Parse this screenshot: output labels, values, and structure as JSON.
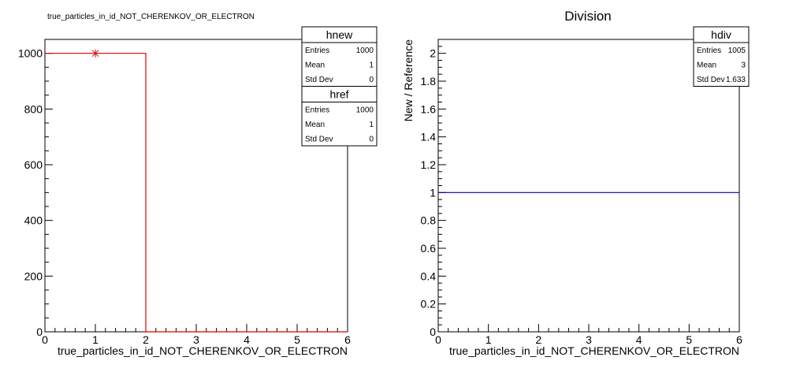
{
  "colors": {
    "new_hist": "#e00000",
    "div_hist": "#000099",
    "frame": "#000000"
  },
  "chart_data": [
    {
      "type": "bar",
      "title": "true_particles_in_id_NOT_CHERENKOV_OR_ELECTRON",
      "xlabel": "true_particles_in_id_NOT_CHERENKOV_OR_ELECTRON",
      "ylabel": "",
      "xlim": [
        0,
        6
      ],
      "ylim": [
        0,
        1050
      ],
      "x_ticks": [
        "0",
        "1",
        "2",
        "3",
        "4",
        "5",
        "6"
      ],
      "y_ticks": [
        "0",
        "200",
        "400",
        "600",
        "800",
        "1000"
      ],
      "series": [
        {
          "name": "hnew",
          "bins": [
            [
              0,
              2,
              1000
            ],
            [
              2,
              6,
              0
            ]
          ],
          "marker": {
            "x": 1,
            "y": 1000
          }
        }
      ],
      "stats": [
        {
          "name": "hnew",
          "rows": [
            {
              "label": "Entries",
              "value": "1000"
            },
            {
              "label": "Mean",
              "value": "1"
            },
            {
              "label": "Std Dev",
              "value": "0"
            }
          ]
        },
        {
          "name": "href",
          "rows": [
            {
              "label": "Entries",
              "value": "1000"
            },
            {
              "label": "Mean",
              "value": "1"
            },
            {
              "label": "Std Dev",
              "value": "0"
            }
          ]
        }
      ],
      "legend_position": "top-right"
    },
    {
      "type": "line",
      "title": "Division",
      "xlabel": "true_particles_in_id_NOT_CHERENKOV_OR_ELECTRON",
      "ylabel": "New / Reference",
      "xlim": [
        0,
        6
      ],
      "ylim": [
        0,
        2.1
      ],
      "x_ticks": [
        "0",
        "1",
        "2",
        "3",
        "4",
        "5",
        "6"
      ],
      "y_ticks": [
        "0",
        "0.2",
        "0.4",
        "0.6",
        "0.8",
        "1",
        "1.2",
        "1.4",
        "1.6",
        "1.8",
        "2"
      ],
      "series": [
        {
          "name": "hdiv",
          "x": [
            0,
            6
          ],
          "y": [
            1,
            1
          ]
        }
      ],
      "stats": [
        {
          "name": "hdiv",
          "rows": [
            {
              "label": "Entries",
              "value": "1005"
            },
            {
              "label": "Mean",
              "value": "3"
            },
            {
              "label": "Std Dev",
              "value": "1.633"
            }
          ]
        }
      ],
      "legend_position": "top-right"
    }
  ]
}
